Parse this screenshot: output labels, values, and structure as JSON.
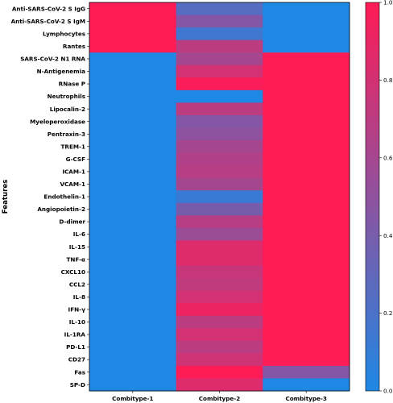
{
  "chart_data": {
    "type": "heatmap",
    "ylabel": "Features",
    "xlabel": "",
    "x_categories": [
      "Combitype-1",
      "Combitype-2",
      "Combitype-3"
    ],
    "y_categories": [
      "Anti-SARS-CoV-2 S IgG",
      "Anti-SARS-CoV-2 S IgM",
      "Lymphocytes",
      "Rantes",
      "SARS-CoV-2 N1 RNA",
      "N-Antigenemia",
      "RNase P",
      "Neutrophils",
      "Lipocalin-2",
      "Myeloperoxidase",
      "Pentraxin-3",
      "TREM-1",
      "G-CSF",
      "ICAM-1",
      "VCAM-1",
      "Endothelin-1",
      "Angiopoietin-2",
      "D-dimer",
      "IL-6",
      "IL-15",
      "TNF-α",
      "CXCL10",
      "CCL2",
      "IL-8",
      "IFN-γ",
      "IL-10",
      "IL-1RA",
      "PD-L1",
      "CD27",
      "Fas",
      "SP-D"
    ],
    "values": [
      [
        1.0,
        0.25,
        0.0
      ],
      [
        1.0,
        0.45,
        0.0
      ],
      [
        1.0,
        0.15,
        0.0
      ],
      [
        1.0,
        0.7,
        0.0
      ],
      [
        0.0,
        0.6,
        1.0
      ],
      [
        0.0,
        0.8,
        1.0
      ],
      [
        0.0,
        0.98,
        1.0
      ],
      [
        0.0,
        0.0,
        1.0
      ],
      [
        0.0,
        0.7,
        1.0
      ],
      [
        0.0,
        0.45,
        1.0
      ],
      [
        0.0,
        0.5,
        1.0
      ],
      [
        0.0,
        0.6,
        1.0
      ],
      [
        0.0,
        0.65,
        1.0
      ],
      [
        0.0,
        0.68,
        1.0
      ],
      [
        0.0,
        0.6,
        1.0
      ],
      [
        0.0,
        0.12,
        1.0
      ],
      [
        0.0,
        0.4,
        1.0
      ],
      [
        0.0,
        0.68,
        1.0
      ],
      [
        0.0,
        0.55,
        1.0
      ],
      [
        0.0,
        0.85,
        1.0
      ],
      [
        0.0,
        0.85,
        1.0
      ],
      [
        0.0,
        0.75,
        1.0
      ],
      [
        0.0,
        0.72,
        1.0
      ],
      [
        0.0,
        0.8,
        1.0
      ],
      [
        0.0,
        0.92,
        1.0
      ],
      [
        0.0,
        0.7,
        1.0
      ],
      [
        0.0,
        0.8,
        1.0
      ],
      [
        0.0,
        0.7,
        1.0
      ],
      [
        0.0,
        0.78,
        1.0
      ],
      [
        0.0,
        1.0,
        0.45
      ],
      [
        0.0,
        0.85,
        0.0
      ]
    ],
    "colorbar": {
      "min": 0.0,
      "max": 1.0,
      "ticks": [
        "0.0",
        "0.2",
        "0.4",
        "0.6",
        "0.8",
        "1.0"
      ],
      "tick_values": [
        0.0,
        0.2,
        0.4,
        0.6,
        0.8,
        1.0
      ],
      "low_color": "#1E88E5",
      "high_color": "#FF1B56"
    },
    "grid": false,
    "legend": "colorbar-right"
  }
}
